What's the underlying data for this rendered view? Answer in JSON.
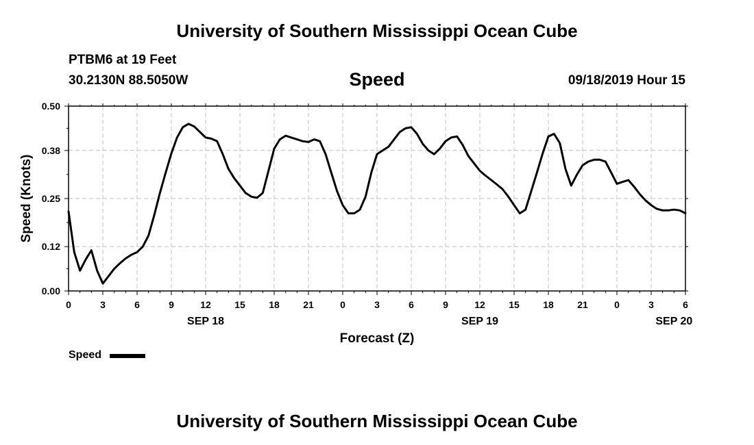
{
  "header": {
    "title_top": "University of Southern Mississippi Ocean Cube",
    "station": "PTBM6 at 19 Feet",
    "location": "30.2130N 88.5050W",
    "datetime": "09/18/2019 Hour 15"
  },
  "footer": {
    "title_bottom": "University of Southern Mississippi Ocean Cube"
  },
  "chart_data": {
    "type": "line",
    "title": "Speed",
    "xlabel": "Forecast (Z)",
    "ylabel": "Speed (Knots)",
    "xlim": [
      0,
      54
    ],
    "ylim": [
      0,
      0.5
    ],
    "y_ticks": [
      0.0,
      0.12,
      0.25,
      0.38,
      0.5
    ],
    "y_tick_labels": [
      "0.00",
      "0.12",
      "0.25",
      "0.38",
      "0.50"
    ],
    "x_ticks": [
      0,
      3,
      6,
      9,
      12,
      15,
      18,
      21,
      24,
      27,
      30,
      33,
      36,
      39,
      42,
      45,
      48,
      51,
      54
    ],
    "x_tick_labels": [
      "0",
      "3",
      "6",
      "9",
      "12",
      "15",
      "18",
      "21",
      "0",
      "3",
      "6",
      "9",
      "12",
      "15",
      "18",
      "21",
      "0",
      "3",
      "6"
    ],
    "date_labels": [
      {
        "x": 12,
        "label": "SEP 18"
      },
      {
        "x": 36,
        "label": "SEP 19"
      },
      {
        "x": 53,
        "label": "SEP 20"
      }
    ],
    "grid": true,
    "legend": "bottom-left",
    "series": [
      {
        "name": "Speed",
        "color": "#000000",
        "x": [
          0,
          0.5,
          1,
          1.5,
          2,
          2.5,
          3,
          3.5,
          4,
          4.5,
          5,
          5.5,
          6,
          6.5,
          7,
          7.5,
          8,
          8.5,
          9,
          9.5,
          10,
          10.5,
          11,
          11.5,
          12,
          12.5,
          13,
          13.5,
          14,
          14.5,
          15,
          15.5,
          16,
          16.5,
          17,
          17.5,
          18,
          18.5,
          19,
          19.5,
          20,
          20.5,
          21,
          21.5,
          22,
          22.5,
          23,
          23.5,
          24,
          24.5,
          25,
          25.5,
          26,
          26.5,
          27,
          27.5,
          28,
          28.5,
          29,
          29.5,
          30,
          30.5,
          31,
          31.5,
          32,
          32.5,
          33,
          33.5,
          34,
          34.5,
          35,
          35.5,
          36,
          36.5,
          37,
          37.5,
          38,
          38.5,
          39,
          39.5,
          40,
          40.5,
          41,
          41.5,
          42,
          42.5,
          43,
          43.5,
          44,
          44.5,
          45,
          45.5,
          46,
          46.5,
          47,
          47.5,
          48,
          48.5,
          49,
          49.5,
          50,
          50.5,
          51,
          51.5,
          52,
          52.5,
          53,
          53.5,
          54
        ],
        "values": [
          0.215,
          0.105,
          0.055,
          0.085,
          0.11,
          0.055,
          0.02,
          0.04,
          0.06,
          0.075,
          0.088,
          0.098,
          0.105,
          0.12,
          0.15,
          0.205,
          0.265,
          0.32,
          0.372,
          0.415,
          0.443,
          0.452,
          0.445,
          0.43,
          0.415,
          0.412,
          0.405,
          0.37,
          0.33,
          0.305,
          0.285,
          0.265,
          0.255,
          0.252,
          0.265,
          0.325,
          0.385,
          0.41,
          0.42,
          0.415,
          0.41,
          0.405,
          0.403,
          0.41,
          0.405,
          0.37,
          0.32,
          0.27,
          0.232,
          0.21,
          0.21,
          0.22,
          0.255,
          0.32,
          0.37,
          0.38,
          0.39,
          0.41,
          0.43,
          0.44,
          0.443,
          0.425,
          0.398,
          0.38,
          0.37,
          0.385,
          0.405,
          0.415,
          0.418,
          0.395,
          0.365,
          0.345,
          0.325,
          0.312,
          0.3,
          0.288,
          0.275,
          0.255,
          0.232,
          0.21,
          0.22,
          0.27,
          0.32,
          0.372,
          0.418,
          0.425,
          0.4,
          0.33,
          0.285,
          0.315,
          0.34,
          0.35,
          0.355,
          0.355,
          0.35,
          0.32,
          0.29,
          0.295,
          0.3,
          0.282,
          0.262,
          0.245,
          0.232,
          0.222,
          0.218,
          0.218,
          0.22,
          0.218,
          0.21
        ]
      }
    ]
  }
}
